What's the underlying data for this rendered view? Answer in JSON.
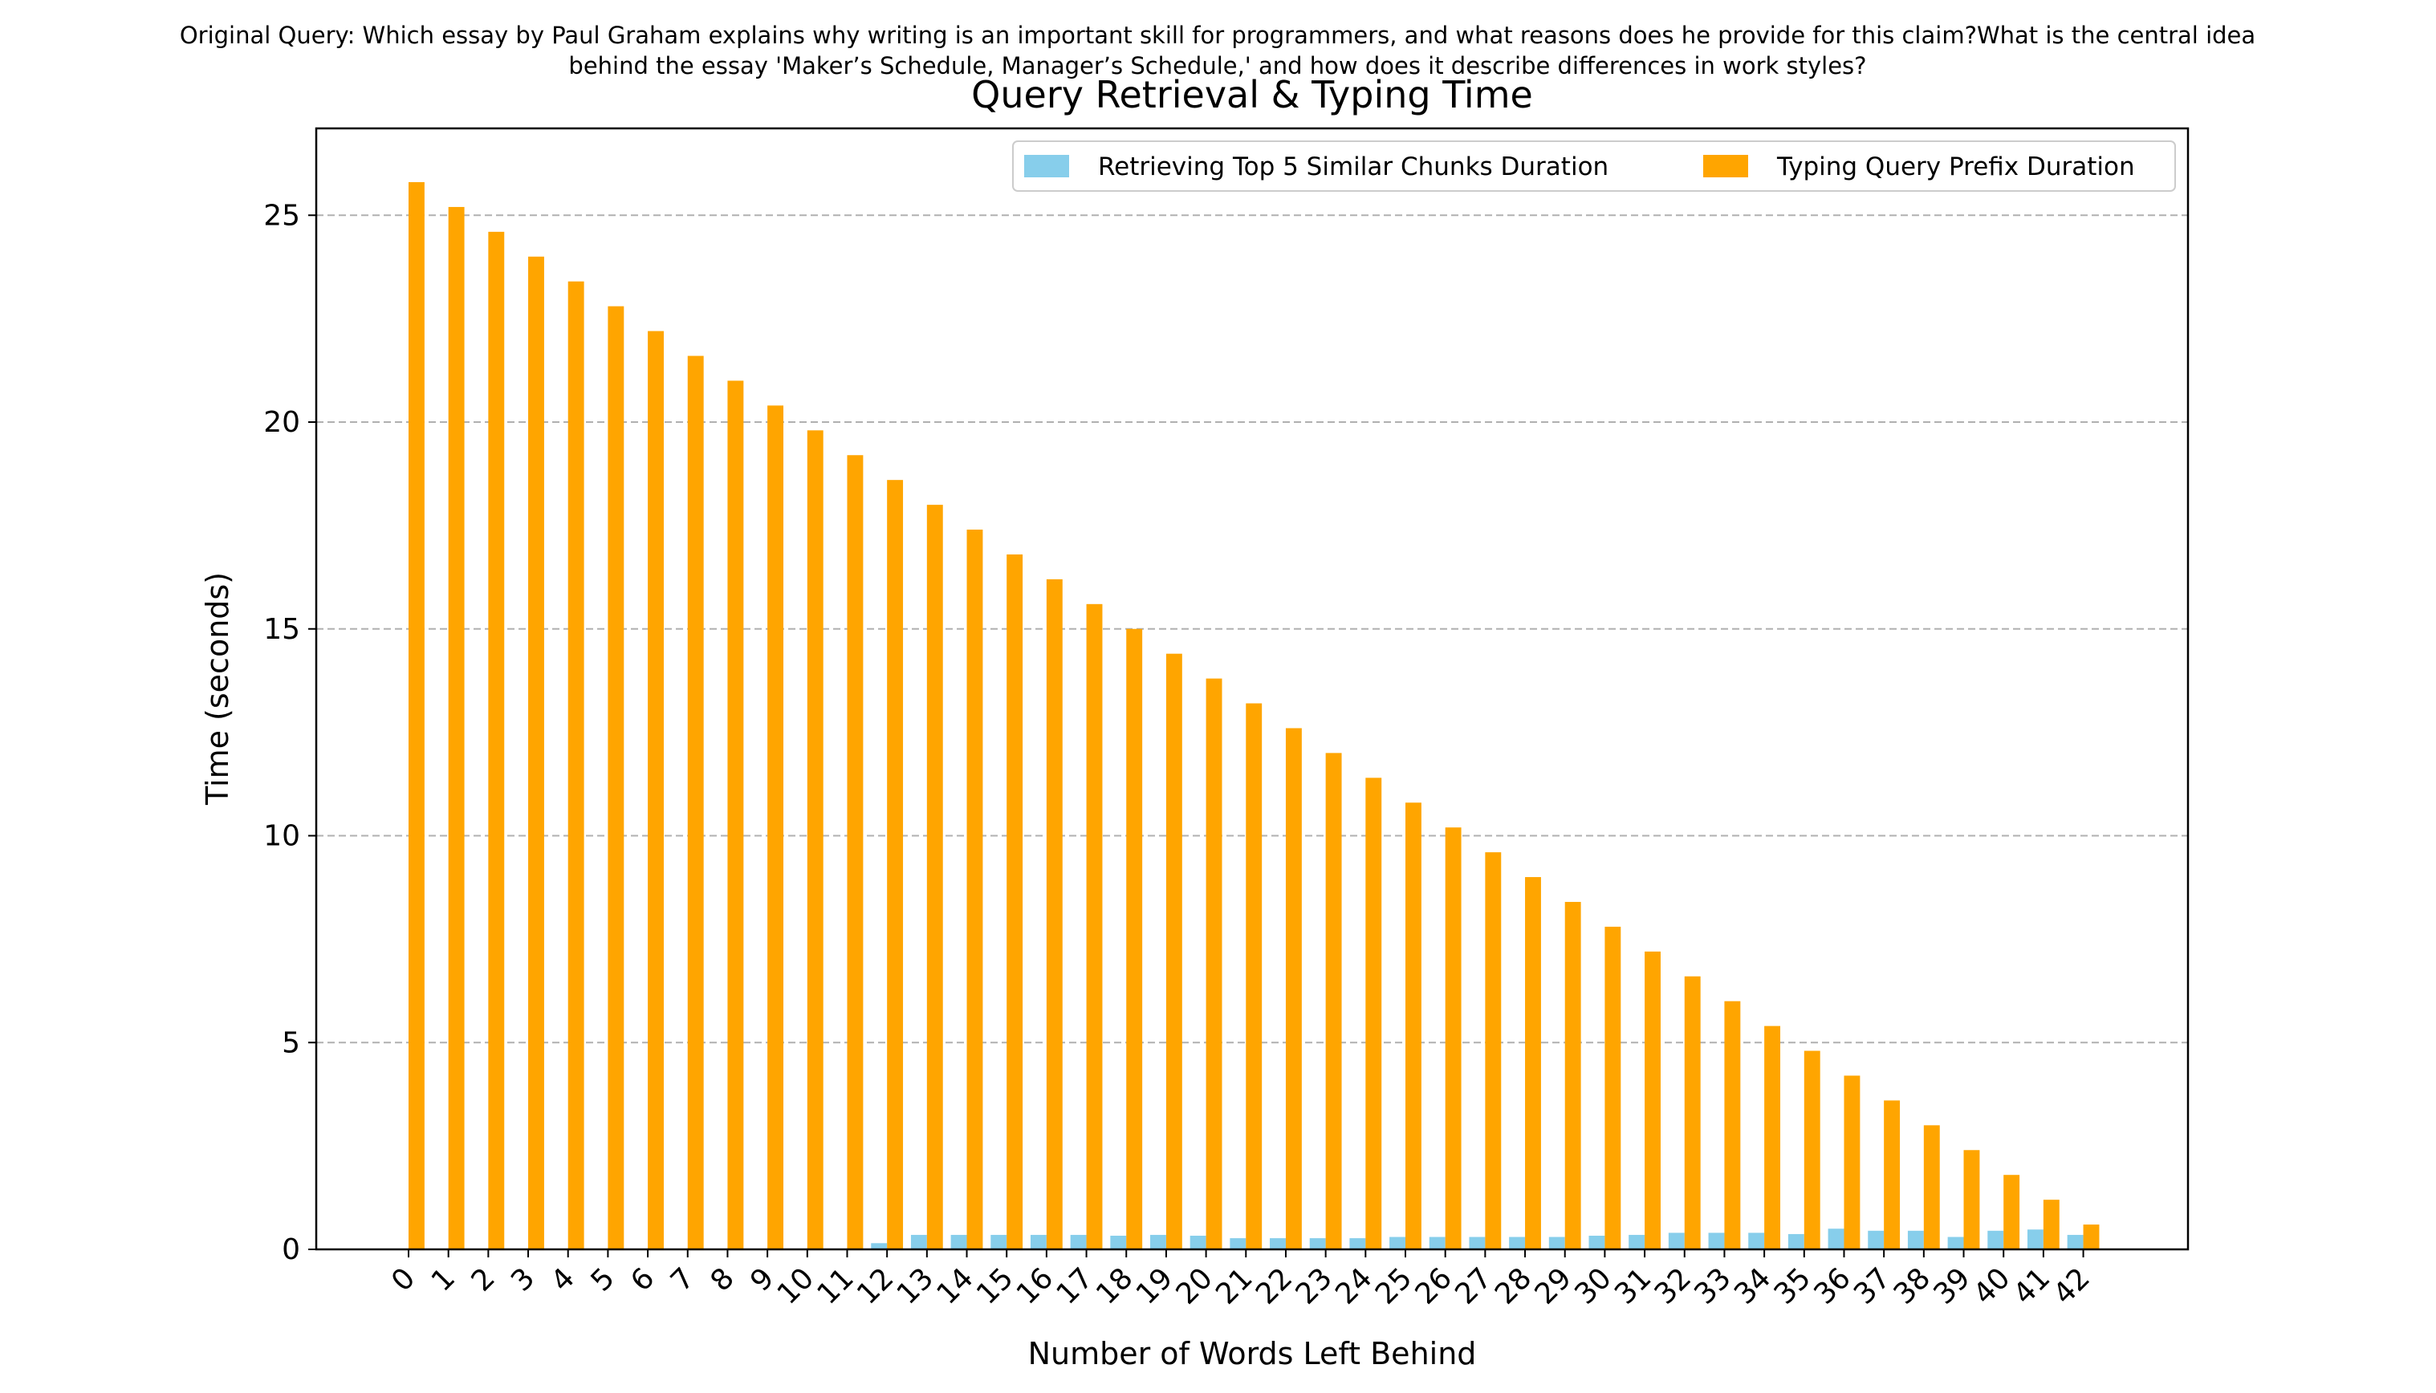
{
  "chart_data": {
    "type": "bar",
    "suptitle_lines": [
      "Original Query: Which essay by Paul Graham explains why writing is an important skill for programmers, and what reasons does he provide for this claim?What is the central idea",
      "behind the essay 'Maker’s Schedule, Manager’s Schedule,' and how does it describe differences in work styles?"
    ],
    "title": "Query Retrieval & Typing Time",
    "xlabel": "Number of Words Left Behind",
    "ylabel": "Time (seconds)",
    "ylim": [
      0,
      27.1
    ],
    "yticks": [
      0,
      5,
      10,
      15,
      20,
      25
    ],
    "grid": "y-dashed",
    "legend_placement": "top-right",
    "categories": [
      "0",
      "1",
      "2",
      "3",
      "4",
      "5",
      "6",
      "7",
      "8",
      "9",
      "10",
      "11",
      "12",
      "13",
      "14",
      "15",
      "16",
      "17",
      "18",
      "19",
      "20",
      "21",
      "22",
      "23",
      "24",
      "25",
      "26",
      "27",
      "28",
      "29",
      "30",
      "31",
      "32",
      "33",
      "34",
      "35",
      "36",
      "37",
      "38",
      "39",
      "40",
      "41",
      "42"
    ],
    "series": [
      {
        "name": "Retrieving Top 5 Similar Chunks Duration",
        "color": "#87CEEB",
        "values": [
          0,
          0,
          0,
          0,
          0,
          0,
          0,
          0,
          0,
          0,
          0,
          0,
          0.15,
          0.35,
          0.35,
          0.35,
          0.35,
          0.35,
          0.33,
          0.35,
          0.33,
          0.27,
          0.27,
          0.27,
          0.27,
          0.3,
          0.3,
          0.3,
          0.3,
          0.3,
          0.33,
          0.35,
          0.4,
          0.4,
          0.4,
          0.37,
          0.5,
          0.45,
          0.45,
          0.3,
          0.45,
          0.48,
          0.35
        ]
      },
      {
        "name": "Typing Query Prefix Duration",
        "color": "#FFA500",
        "values": [
          25.8,
          25.2,
          24.6,
          24.0,
          23.4,
          22.8,
          22.2,
          21.6,
          21.0,
          20.4,
          19.8,
          19.2,
          18.6,
          18.0,
          17.4,
          16.8,
          16.2,
          15.6,
          15.0,
          14.4,
          13.8,
          13.2,
          12.6,
          12.0,
          11.4,
          10.8,
          10.2,
          9.6,
          9.0,
          8.4,
          7.8,
          7.2,
          6.6,
          6.0,
          5.4,
          4.8,
          4.2,
          3.6,
          3.0,
          2.4,
          1.8,
          1.2,
          0.6
        ]
      }
    ]
  }
}
